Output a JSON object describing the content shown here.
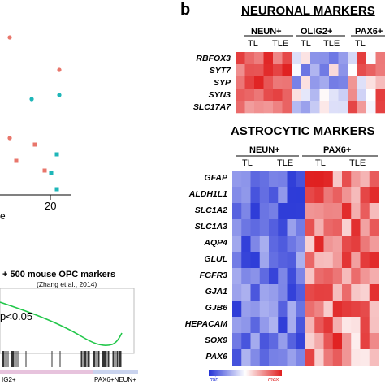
{
  "panel_b_label": "b",
  "left_scatter": {
    "x_tick": "20",
    "x_label_fragment": "e",
    "colors": {
      "red": "#e8766b",
      "teal": "#1eb6b8"
    }
  },
  "gsea": {
    "title": "+ 500 mouse OPC markers",
    "citation": "(Zhang et al., 2014)",
    "pvalue": "p<0.05",
    "left_label": "IG2+",
    "right_label": "PAX6+NEUN+",
    "curve_color": "#22c74a"
  },
  "neuronal": {
    "title": "NEURONAL MARKERS",
    "groups": [
      "NEUN+",
      "OLIG2+",
      "PAX6+"
    ],
    "subgroups": [
      "TL",
      "TLE",
      "TL",
      "TLE",
      "TL"
    ],
    "genes": [
      "RBFOX3",
      "SYT7",
      "SYP",
      "SYN3",
      "SLC17A7"
    ]
  },
  "astrocytic": {
    "title": "ASTROCYTIC MARKERS",
    "groups": [
      "NEUN+",
      "PAX6+"
    ],
    "subgroups": [
      "TL",
      "TLE",
      "TL",
      "TLE"
    ],
    "genes": [
      "GFAP",
      "ALDH1L1",
      "SLC1A2",
      "SLC1A3",
      "AQP4",
      "GLUL",
      "FGFR3",
      "GJA1",
      "GJB6",
      "HEPACAM",
      "SOX9",
      "PAX6"
    ]
  },
  "legend": {
    "min": "min",
    "max": "max"
  },
  "colors": {
    "min": "#2433d6",
    "mid": "#ffffff",
    "max": "#e01f1f"
  }
}
